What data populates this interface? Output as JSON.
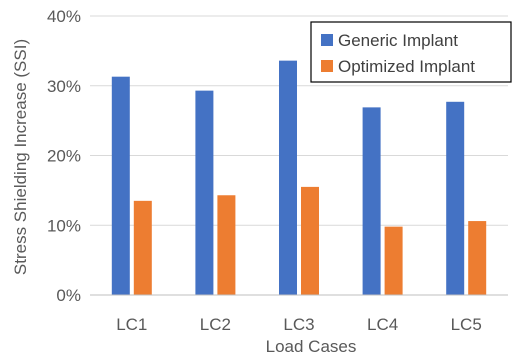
{
  "chart_data": {
    "type": "bar",
    "categories": [
      "LC1",
      "LC2",
      "LC3",
      "LC4",
      "LC5"
    ],
    "series": [
      {
        "name": "Generic Implant",
        "values": [
          31.3,
          29.3,
          33.6,
          26.9,
          27.7
        ],
        "color": "#4472C4"
      },
      {
        "name": "Optimized Implant",
        "values": [
          13.5,
          14.3,
          15.5,
          9.8,
          10.6
        ],
        "color": "#ED7D31"
      }
    ],
    "title": "",
    "xlabel": "Load Cases",
    "ylabel": "Stress Shielding Increase (SSI)",
    "ylim": [
      0,
      40
    ],
    "yticks": [
      0,
      10,
      20,
      30,
      40
    ],
    "ytick_labels": [
      "0%",
      "10%",
      "20%",
      "30%",
      "40%"
    ],
    "grid": true,
    "legend_position": "top-right"
  }
}
